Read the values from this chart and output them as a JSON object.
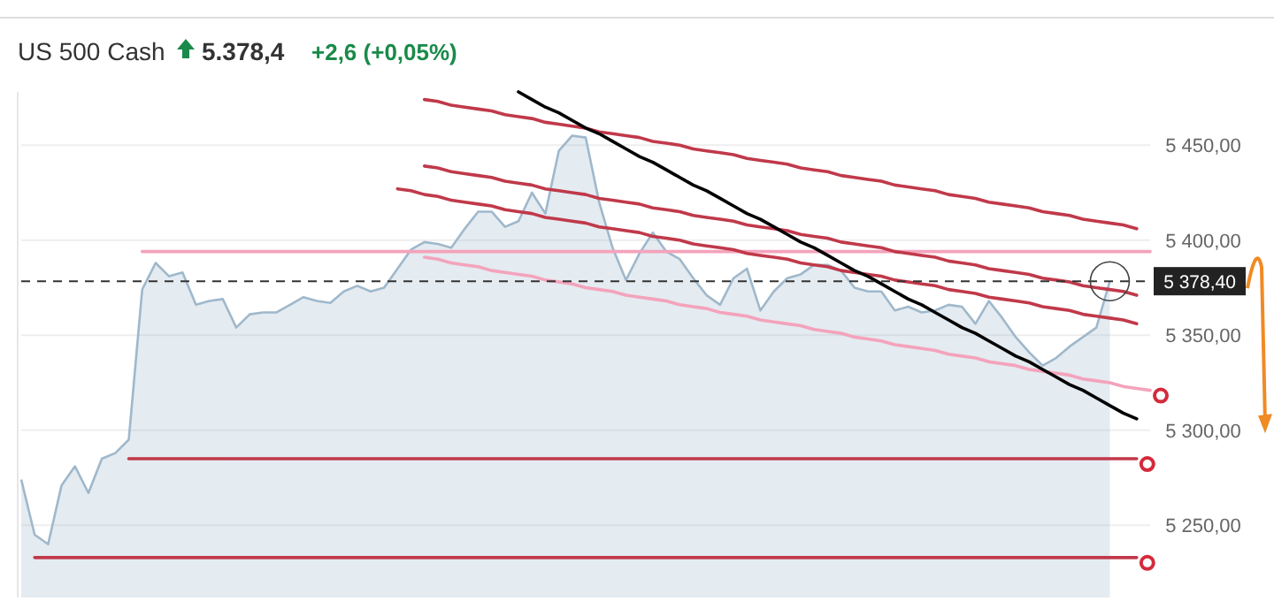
{
  "chart_data": {
    "type": "area",
    "title": "US 500 Cash",
    "annotations": [
      "5.378,4",
      "+2,6 (+0,05%)"
    ],
    "categories": [
      null,
      null,
      null,
      null,
      null,
      null,
      null,
      null,
      null,
      null,
      null,
      null,
      null,
      null,
      null,
      null,
      null,
      null,
      null,
      null,
      null,
      null,
      null,
      null,
      null,
      null,
      null,
      null,
      null,
      null,
      null,
      null,
      null,
      null,
      null,
      null,
      null,
      null,
      null,
      null,
      null,
      null,
      null,
      null,
      null,
      null,
      null,
      null,
      null,
      null,
      null,
      null,
      null,
      null,
      null,
      null,
      null,
      null,
      null,
      null,
      null,
      null,
      null,
      null,
      null,
      null,
      null,
      null,
      null,
      null,
      null,
      null,
      null,
      null,
      null,
      null,
      null,
      null,
      null,
      null,
      null,
      null,
      null,
      null,
      null
    ],
    "ylim": [
      5212,
      5478
    ],
    "yticks": [
      {
        "value": 5250,
        "label": "5 250,00"
      },
      {
        "value": 5300,
        "label": "5 300,00"
      },
      {
        "value": 5350,
        "label": "5 350,00"
      },
      {
        "value": 5400,
        "label": "5 400,00"
      },
      {
        "value": 5450,
        "label": "5 450,00"
      }
    ],
    "tick_labels": "y",
    "grid": "y",
    "ref_lines": [
      {
        "axis": "y",
        "value": 5378.4,
        "label": "5 378,40",
        "color": "#333333",
        "line_style": "dashed"
      }
    ],
    "series": [
      {
        "color": "#9fb8cb",
        "values": [
          5274,
          5245,
          5240,
          5271,
          5281,
          5267,
          5285,
          5288,
          5295,
          5374,
          5388,
          5381,
          5383,
          5366,
          5368,
          5369,
          5354,
          5361,
          5362,
          5362,
          5366,
          5370,
          5368,
          5367,
          5373,
          5376,
          5373,
          5375,
          5385,
          5395,
          5399,
          5398,
          5396,
          5406,
          5415,
          5415,
          5407,
          5410,
          5425,
          5414,
          5447,
          5455,
          5454,
          5420,
          5396,
          5379,
          5393,
          5404,
          5394,
          5390,
          5380,
          5371,
          5366,
          5380,
          5385,
          5363,
          5373,
          5380,
          5382,
          5387,
          5387,
          5384,
          5375,
          5373,
          5373,
          5363,
          5365,
          5362,
          5363,
          5366,
          5365,
          5356,
          5368,
          5359,
          5349,
          5341,
          5334,
          5338,
          5344,
          5349,
          5354,
          5378.4,
          null,
          null,
          null
        ]
      },
      {
        "type": "line",
        "color": "#f4a3bc",
        "values": [
          null,
          null,
          null,
          null,
          null,
          null,
          null,
          null,
          null,
          5394,
          5394,
          5394,
          5394,
          5394,
          5394,
          5394,
          5394,
          5394,
          5394,
          5394,
          5394,
          5394,
          5394,
          5394,
          5394,
          5394,
          5394,
          5394,
          5394,
          5394,
          5394,
          5394,
          5394,
          5394,
          5394,
          5394,
          5394,
          5394,
          5394,
          5394,
          5394,
          5394,
          5394,
          5394,
          5394,
          5394,
          5394,
          5394,
          5394,
          5394,
          5394,
          5394,
          5394,
          5394,
          5394,
          5394,
          5394,
          5394,
          5394,
          5394,
          5394,
          5394,
          5394,
          5394,
          5394,
          5394,
          5394,
          5394,
          5394,
          5394,
          5394,
          5394,
          5394,
          5394,
          5394,
          5394,
          5394,
          5394,
          5394,
          5394,
          5394,
          5394,
          5394,
          5394,
          5394
        ]
      },
      {
        "type": "line",
        "color": "#c0394a",
        "values": [
          null,
          null,
          null,
          null,
          null,
          null,
          null,
          null,
          null,
          null,
          null,
          null,
          null,
          null,
          null,
          null,
          null,
          null,
          null,
          null,
          null,
          null,
          null,
          null,
          null,
          null,
          null,
          null,
          null,
          null,
          5474,
          5473,
          5471,
          5470,
          5469,
          5468,
          5466,
          5465,
          5464,
          5462,
          5461,
          5460,
          5459,
          5457,
          5456,
          5455,
          5454,
          5452,
          5451,
          5450,
          5448,
          5447,
          5446,
          5445,
          5443,
          5442,
          5441,
          5440,
          5438,
          5437,
          5436,
          5434,
          5433,
          5432,
          5431,
          5429,
          5428,
          5427,
          5426,
          5424,
          5423,
          5422,
          5420,
          5419,
          5418,
          5417,
          5415,
          5414,
          5413,
          5411,
          5410,
          5409,
          5408,
          5406,
          null
        ]
      },
      {
        "type": "line",
        "color": "#c0394a",
        "values": [
          null,
          null,
          null,
          null,
          null,
          null,
          null,
          null,
          null,
          null,
          null,
          null,
          null,
          null,
          null,
          null,
          null,
          null,
          null,
          null,
          null,
          null,
          null,
          null,
          null,
          null,
          null,
          null,
          null,
          null,
          5439,
          5438,
          5436,
          5435,
          5434,
          5433,
          5431,
          5430,
          5429,
          5427,
          5426,
          5425,
          5424,
          5422,
          5421,
          5420,
          5419,
          5417,
          5416,
          5415,
          5413,
          5412,
          5411,
          5410,
          5408,
          5407,
          5406,
          5405,
          5403,
          5402,
          5401,
          5399,
          5398,
          5397,
          5396,
          5394,
          5393,
          5392,
          5391,
          5389,
          5388,
          5387,
          5385,
          5384,
          5383,
          5382,
          5380,
          5379,
          5378,
          5376,
          5375,
          5374,
          5373,
          5371,
          null
        ]
      },
      {
        "type": "line",
        "color": "#c0394a",
        "values": [
          null,
          null,
          null,
          null,
          null,
          null,
          null,
          null,
          null,
          null,
          null,
          null,
          null,
          null,
          null,
          null,
          null,
          null,
          null,
          null,
          null,
          null,
          null,
          null,
          null,
          null,
          null,
          null,
          5427,
          5426,
          5424,
          5423,
          5421,
          5420,
          5419,
          5418,
          5416,
          5415,
          5414,
          5412,
          5411,
          5410,
          5409,
          5407,
          5406,
          5405,
          5404,
          5402,
          5401,
          5400,
          5398,
          5397,
          5396,
          5395,
          5393,
          5392,
          5391,
          5390,
          5388,
          5387,
          5386,
          5384,
          5383,
          5382,
          5381,
          5379,
          5378,
          5377,
          5376,
          5374,
          5373,
          5372,
          5370,
          5369,
          5368,
          5367,
          5365,
          5364,
          5363,
          5361,
          5360,
          5359,
          5358,
          5356,
          null
        ]
      },
      {
        "type": "line",
        "color": "#f4a3bc",
        "values": [
          null,
          null,
          null,
          null,
          null,
          null,
          null,
          null,
          null,
          null,
          null,
          null,
          null,
          null,
          null,
          null,
          null,
          null,
          null,
          null,
          null,
          null,
          null,
          null,
          null,
          null,
          null,
          null,
          null,
          null,
          5391,
          5390,
          5388,
          5387,
          5386,
          5384,
          5383,
          5382,
          5381,
          5379,
          5378,
          5377,
          5375,
          5374,
          5373,
          5371,
          5370,
          5369,
          5368,
          5366,
          5365,
          5364,
          5362,
          5361,
          5360,
          5358,
          5357,
          5356,
          5355,
          5353,
          5352,
          5351,
          5349,
          5348,
          5347,
          5345,
          5344,
          5343,
          5342,
          5340,
          5339,
          5338,
          5336,
          5335,
          5334,
          5332,
          5331,
          5330,
          5329,
          5327,
          5326,
          5325,
          5323,
          5322,
          5321
        ]
      },
      {
        "type": "line",
        "color": "#000000",
        "values": [
          null,
          null,
          null,
          null,
          null,
          null,
          null,
          null,
          null,
          null,
          null,
          null,
          null,
          null,
          null,
          null,
          null,
          null,
          null,
          null,
          null,
          null,
          null,
          null,
          null,
          null,
          null,
          null,
          null,
          null,
          null,
          null,
          null,
          null,
          null,
          null,
          null,
          5478,
          5474,
          5470,
          5467,
          5463,
          5459,
          5456,
          5452,
          5448,
          5444,
          5441,
          5437,
          5433,
          5429,
          5426,
          5422,
          5418,
          5414,
          5411,
          5407,
          5403,
          5399,
          5396,
          5392,
          5388,
          5384,
          5381,
          5377,
          5373,
          5369,
          5366,
          5362,
          5358,
          5354,
          5351,
          5347,
          5343,
          5339,
          5336,
          5332,
          5328,
          5324,
          5321,
          5317,
          5313,
          5309,
          5306,
          null
        ]
      },
      {
        "type": "line",
        "color": "#c0394a",
        "values": [
          null,
          null,
          null,
          null,
          null,
          null,
          null,
          null,
          5285,
          5285,
          5285,
          5285,
          5285,
          5285,
          5285,
          5285,
          5285,
          5285,
          5285,
          5285,
          5285,
          5285,
          5285,
          5285,
          5285,
          5285,
          5285,
          5285,
          5285,
          5285,
          5285,
          5285,
          5285,
          5285,
          5285,
          5285,
          5285,
          5285,
          5285,
          5285,
          5285,
          5285,
          5285,
          5285,
          5285,
          5285,
          5285,
          5285,
          5285,
          5285,
          5285,
          5285,
          5285,
          5285,
          5285,
          5285,
          5285,
          5285,
          5285,
          5285,
          5285,
          5285,
          5285,
          5285,
          5285,
          5285,
          5285,
          5285,
          5285,
          5285,
          5285,
          5285,
          5285,
          5285,
          5285,
          5285,
          5285,
          5285,
          5285,
          5285,
          5285,
          5285,
          5285,
          5285,
          null
        ]
      },
      {
        "type": "line",
        "color": "#c0394a",
        "values": [
          null,
          5233,
          5233,
          5233,
          5233,
          5233,
          5233,
          5233,
          5233,
          5233,
          5233,
          5233,
          5233,
          5233,
          5233,
          5233,
          5233,
          5233,
          5233,
          5233,
          5233,
          5233,
          5233,
          5233,
          5233,
          5233,
          5233,
          5233,
          5233,
          5233,
          5233,
          5233,
          5233,
          5233,
          5233,
          5233,
          5233,
          5233,
          5233,
          5233,
          5233,
          5233,
          5233,
          5233,
          5233,
          5233,
          5233,
          5233,
          5233,
          5233,
          5233,
          5233,
          5233,
          5233,
          5233,
          5233,
          5233,
          5233,
          5233,
          5233,
          5233,
          5233,
          5233,
          5233,
          5233,
          5233,
          5233,
          5233,
          5233,
          5233,
          5233,
          5233,
          5233,
          5233,
          5233,
          5233,
          5233,
          5233,
          5233,
          5233,
          5233,
          5233,
          5233,
          5233,
          null
        ]
      }
    ]
  }
}
